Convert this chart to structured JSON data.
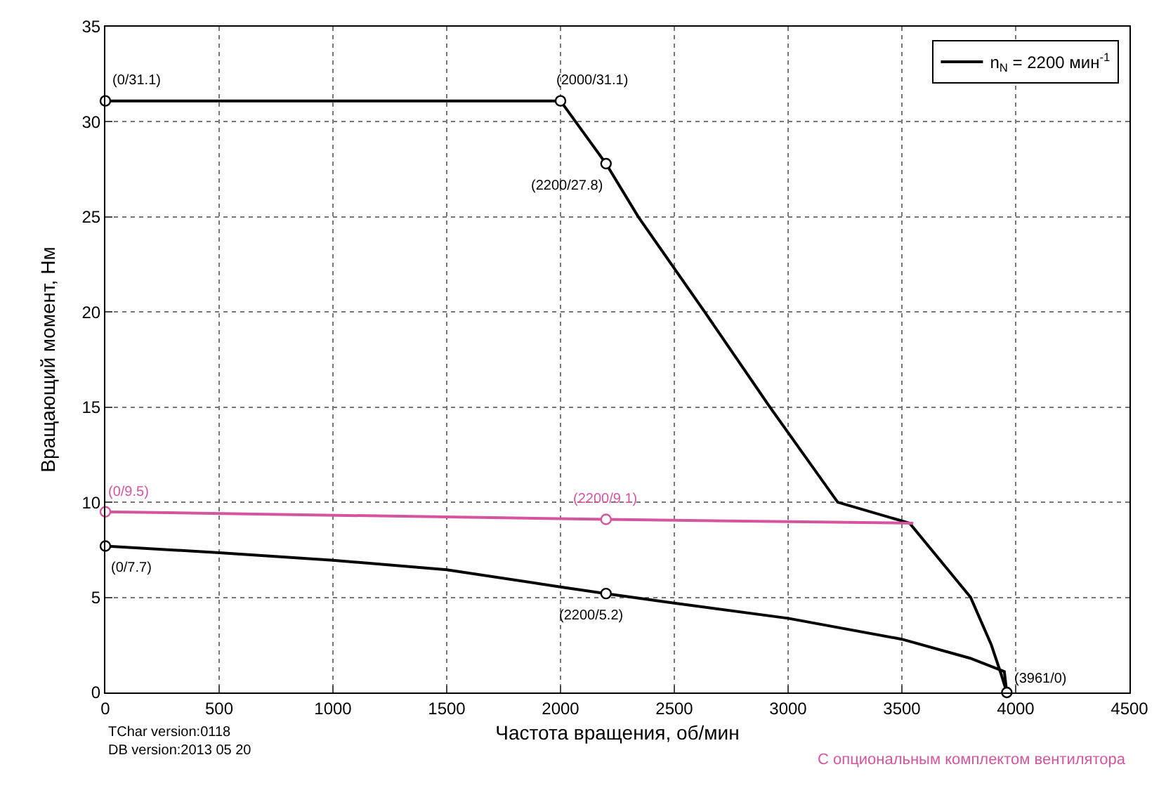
{
  "chart_data": {
    "type": "line",
    "xlabel": "Частота вращения, об/мин",
    "ylabel": "Вращающий момент, Нм",
    "xlim": [
      0,
      4500
    ],
    "xticks": [
      0,
      500,
      1000,
      1500,
      2000,
      2500,
      3000,
      3500,
      4000,
      4500
    ],
    "ylim": [
      0,
      35
    ],
    "yticks": [
      0,
      5,
      10,
      15,
      20,
      25,
      30,
      35
    ],
    "grid": true,
    "legend": "top right",
    "line_style": "solid",
    "marker": "none",
    "series": [
      {
        "name": "n$_{N}$ = 2200 мин$^{-1}$",
        "color": "#000000",
        "x": [
          0,
          2000,
          2200,
          2342,
          2634,
          2920,
          3218,
          3534,
          3802,
          3893,
          3935,
          3961
        ],
        "values": [
          31.1,
          31.1,
          27.8,
          25,
          20,
          15,
          10,
          8.9,
          5,
          2.5,
          1,
          0
        ]
      },
      {
        "color": "#000000",
        "x": [
          0,
          500,
          1000,
          1500,
          2000,
          2200,
          2500,
          3000,
          3500,
          3800,
          3950,
          3961
        ],
        "values": [
          7.7,
          7.35,
          6.95,
          6.45,
          5.55,
          5.2,
          4.7,
          3.9,
          2.8,
          1.8,
          1.1,
          0
        ]
      },
      {
        "color": "#d4559e",
        "x": [
          0,
          2200,
          3550
        ],
        "values": [
          9.5,
          9.1,
          8.9
        ]
      },
      {
        "type": "scatter",
        "marker": "circle",
        "color": "#000000",
        "x": [
          0,
          2000,
          2200,
          0,
          2200,
          3961
        ],
        "values": [
          31.1,
          31.1,
          27.8,
          7.7,
          5.2,
          0
        ]
      },
      {
        "type": "scatter",
        "marker": "circle",
        "color": "#d4559e",
        "x": [
          0,
          2200
        ],
        "values": [
          9.5,
          9.1
        ]
      }
    ],
    "annotations": [
      {
        "text": "(0/31.1)",
        "x": 0,
        "y": 31.1
      },
      {
        "text": "(2000/31.1)",
        "x": 2000,
        "y": 31.1
      },
      {
        "text": "(2200/27.8)",
        "x": 2200,
        "y": 27.8
      },
      {
        "text": "(0/9.5)",
        "x": 0,
        "y": 9.5
      },
      {
        "text": "(2200/9.1)",
        "x": 2200,
        "y": 9.1
      },
      {
        "text": "(0/7.7)",
        "x": 0,
        "y": 7.7
      },
      {
        "text": "(2200/5.2)",
        "x": 2200,
        "y": 5.2
      },
      {
        "text": "(3961/0)",
        "x": 3961,
        "y": 0
      },
      "TChar version:0118\nDB version:2013 05 20",
      "С опциональным комплектом вентилятора"
    ]
  }
}
